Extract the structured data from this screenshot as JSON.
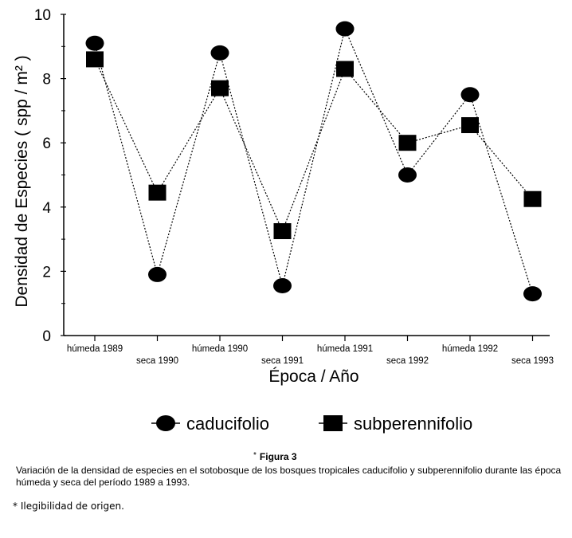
{
  "chart_data": {
    "type": "line",
    "ylabel": "Densidad de Especies ( spp / m² )",
    "xlabel": "Época / Año",
    "categories": [
      "húmeda 1989",
      "seca 1990",
      "húmeda 1990",
      "seca 1991",
      "húmeda 1991",
      "seca 1992",
      "húmeda 1992",
      "seca 1993"
    ],
    "ylim": [
      0,
      10
    ],
    "yticks": [
      0,
      2,
      4,
      6,
      8,
      10
    ],
    "series": [
      {
        "name": "caducifolio",
        "marker": "circle",
        "values": [
          9.1,
          1.9,
          8.8,
          1.55,
          9.55,
          5.0,
          7.5,
          1.3
        ]
      },
      {
        "name": "subperennifolio",
        "marker": "square",
        "values": [
          8.6,
          4.45,
          7.7,
          3.25,
          8.3,
          6.0,
          6.55,
          4.25
        ]
      }
    ]
  },
  "figure": {
    "star": "*",
    "title": "Figura 3",
    "caption": "Variación de la densidad de especies en el sotobosque de los bosques tropicales caducifolio y subperennifolio durante las época húmeda y seca del período 1989 a 1993.",
    "footnote": "* Ilegibilidad de origen."
  },
  "colors": {
    "ink": "#000000",
    "background": "#ffffff"
  }
}
